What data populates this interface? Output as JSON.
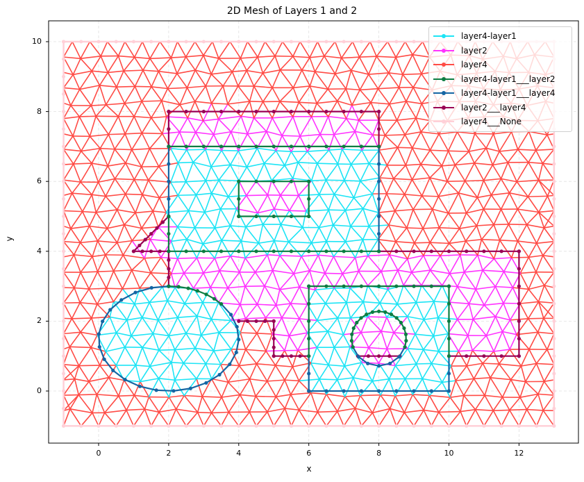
{
  "chart_data": {
    "type": "mesh",
    "title": "2D Mesh of Layers 1 and 2",
    "xlabel": "x",
    "ylabel": "y",
    "xlim": [
      -1.7,
      13.7
    ],
    "ylim": [
      -1.55,
      10.55
    ],
    "xticks": [
      0,
      2,
      4,
      6,
      8,
      10,
      12
    ],
    "yticks": [
      0,
      2,
      4,
      6,
      8,
      10
    ],
    "grid": true,
    "legend_position": "upper right",
    "legend": [
      {
        "label": "layer4-layer1",
        "color": "#1de4f5"
      },
      {
        "label": "layer2",
        "color": "#ff33ff"
      },
      {
        "label": "layer4",
        "color": "#ff4b45"
      },
      {
        "label": "layer4-layer1___layer2",
        "color": "#0d7d42"
      },
      {
        "label": "layer4-layer1___layer4",
        "color": "#1565a3"
      },
      {
        "label": "layer2___layer4",
        "color": "#990055"
      },
      {
        "label": "layer4___None",
        "color": "#ffd0d8"
      }
    ],
    "domain": {
      "xmin": -1,
      "xmax": 13,
      "ymin": -1,
      "ymax": 10
    },
    "regions": [
      {
        "name": "layer2",
        "shape": "polygon",
        "points": [
          [
            2,
            4
          ],
          [
            2,
            8
          ],
          [
            8,
            8
          ],
          [
            8,
            4
          ],
          [
            12,
            4
          ],
          [
            12,
            1
          ],
          [
            10,
            1
          ],
          [
            10,
            3
          ],
          [
            6,
            3
          ],
          [
            6,
            1
          ],
          [
            5,
            1
          ],
          [
            5,
            2
          ],
          [
            4,
            2
          ],
          [
            2,
            3
          ]
        ],
        "note": "layer2 band"
      },
      {
        "name": "layer2-notch",
        "shape": "polygon",
        "points": [
          [
            1,
            4
          ],
          [
            2,
            4
          ],
          [
            2,
            5
          ]
        ]
      },
      {
        "name": "layer4-layer1-top",
        "shape": "rect",
        "x0": 2,
        "y0": 4,
        "x1": 8,
        "y1": 7
      },
      {
        "name": "layer2-inner-rect",
        "shape": "rect",
        "x0": 4,
        "y0": 5,
        "x1": 6,
        "y1": 6
      },
      {
        "name": "layer4-layer1-bottom",
        "shape": "rect",
        "x0": 6,
        "y0": 0,
        "x1": 10,
        "y1": 3
      },
      {
        "name": "layer2-circle",
        "shape": "circle",
        "cx": 8,
        "cy": 1.5,
        "r": 0.78
      },
      {
        "name": "layer4-layer1-ellipse",
        "shape": "ellipse",
        "cx": 2,
        "cy": 1.5,
        "rx": 2,
        "ry": 1.5
      }
    ]
  },
  "colors": {
    "layer4_layer1": "#1de4f5",
    "layer2": "#ff33ff",
    "layer4": "#ff4b45",
    "iface_l1_l2": "#0d7d42",
    "iface_l1_l4": "#1565a3",
    "iface_l2_l4": "#990055",
    "boundary": "#ffd0d8",
    "grid": "#e0e0e0"
  }
}
